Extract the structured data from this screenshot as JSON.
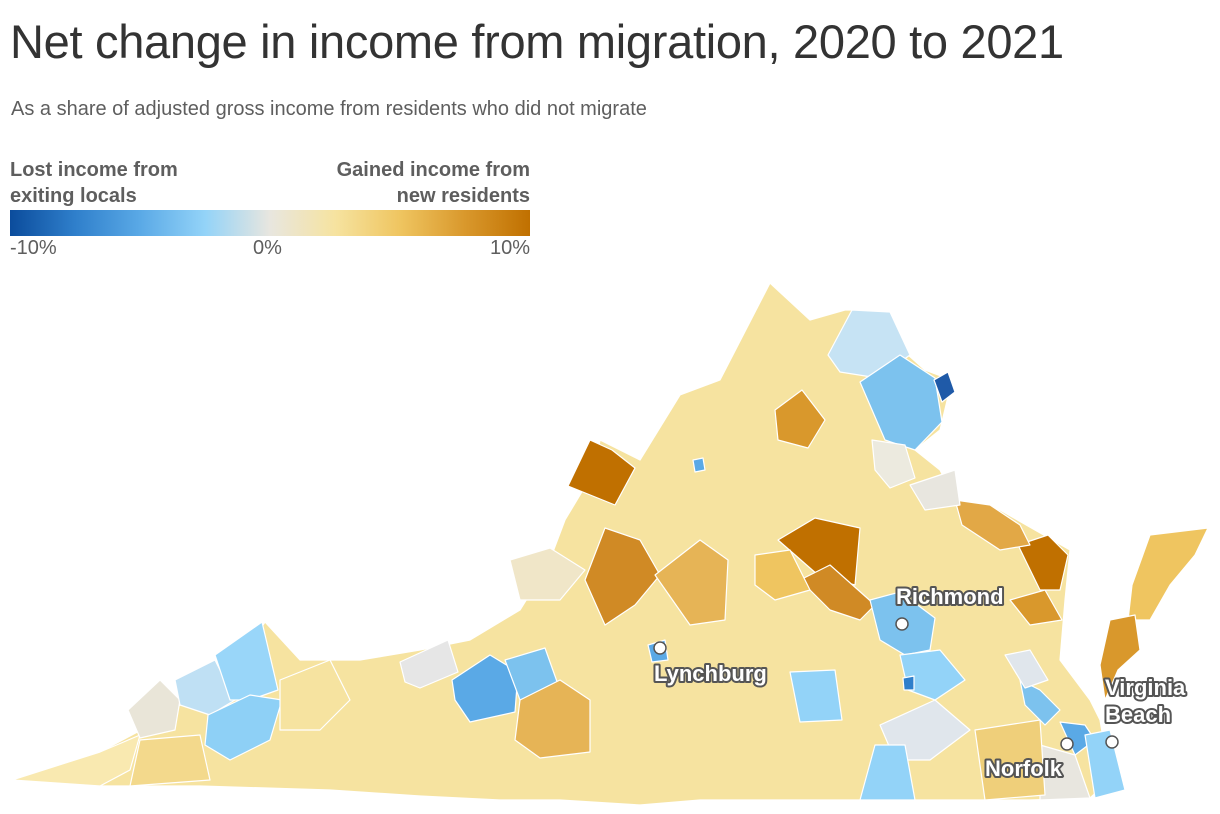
{
  "title": "Net change in income from migration, 2020 to 2021",
  "subtitle": "As a share of adjusted gross income from residents who did not migrate",
  "legend": {
    "left_label_line1": "Lost income from",
    "left_label_line2": "exiting locals",
    "right_label_line1": "Gained income from",
    "right_label_line2": "new residents",
    "ticks": [
      "-10%",
      "0%",
      "10%"
    ],
    "scale_min": -10,
    "scale_max": 10,
    "colors": [
      "#0b4c9c",
      "#2f7fcb",
      "#5aa9e6",
      "#93d3f8",
      "#e8e6df",
      "#f6e3a0",
      "#efc560",
      "#d9982c",
      "#c07000"
    ]
  },
  "cities": [
    {
      "name": "Richmond",
      "label_lines": [
        "Richmond"
      ]
    },
    {
      "name": "Lynchburg",
      "label_lines": [
        "Lynchburg"
      ]
    },
    {
      "name": "Norfolk",
      "label_lines": [
        "Norfolk"
      ]
    },
    {
      "name": "Virginia Beach",
      "label_lines": [
        "Virginia",
        "Beach"
      ]
    }
  ]
}
